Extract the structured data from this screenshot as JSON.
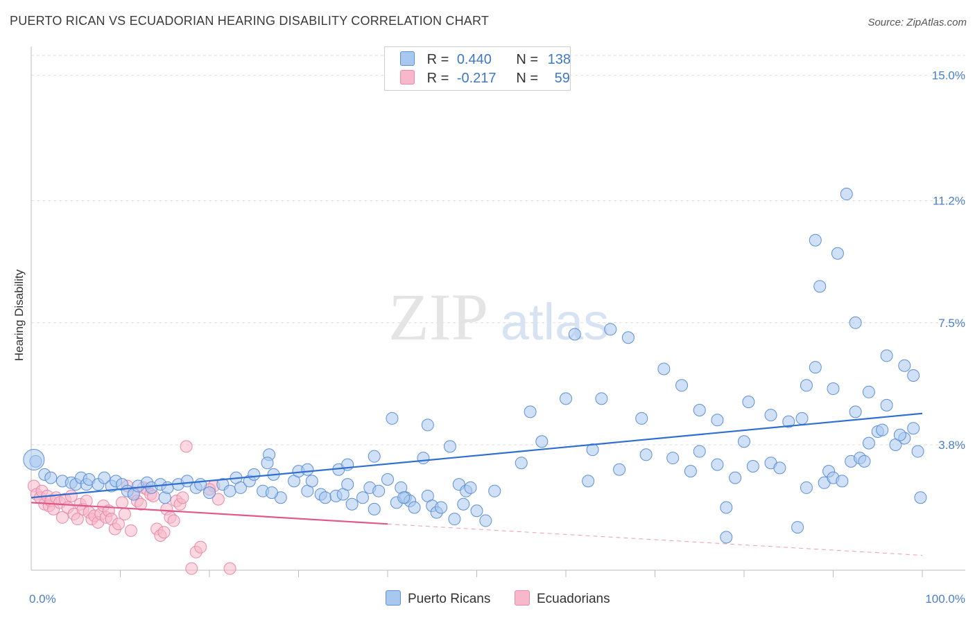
{
  "header": {
    "title": "PUERTO RICAN VS ECUADORIAN HEARING DISABILITY CORRELATION CHART",
    "source": "Source: ZipAtlas.com"
  },
  "watermark": {
    "zip": "ZIP",
    "atlas": "atlas"
  },
  "colors": {
    "blue_fill": "#a9c8f0",
    "blue_stroke": "#5b8fd6",
    "blue_line": "#2f6fd0",
    "pink_fill": "#f7b8cb",
    "pink_stroke": "#e989a6",
    "pink_line": "#e0588a",
    "tick_text": "#4a7fc8"
  },
  "legend": {
    "rows": [
      {
        "r_label": "R =",
        "r_value": "0.440",
        "n_label": "N =",
        "n_value": "138"
      },
      {
        "r_label": "R =",
        "r_value": "-0.217",
        "n_label": "N =",
        "n_value": "59"
      }
    ]
  },
  "bottom_legend": {
    "series1": "Puerto Ricans",
    "series2": "Ecuadorians"
  },
  "chart_data": {
    "type": "scatter",
    "title": "PUERTO RICAN VS ECUADORIAN HEARING DISABILITY CORRELATION CHART",
    "xlabel": "",
    "ylabel": "Hearing Disability",
    "xlim": [
      0,
      100
    ],
    "ylim": [
      0,
      15.6
    ],
    "x_tick_labels": [
      "0.0%",
      "100.0%"
    ],
    "y_ticks": [
      3.8,
      7.5,
      11.2,
      15.0
    ],
    "y_tick_labels": [
      "3.8%",
      "7.5%",
      "11.2%",
      "15.0%"
    ],
    "grid": "horizontal dashed",
    "series": [
      {
        "name": "Puerto Ricans",
        "color": "#5b8fd6",
        "R": 0.44,
        "N": 138,
        "trend": {
          "x": [
            0,
            100
          ],
          "y": [
            2.2,
            4.75
          ]
        },
        "points": [
          [
            0.5,
            3.3
          ],
          [
            1.5,
            2.9
          ],
          [
            2.2,
            2.8
          ],
          [
            3.5,
            2.7
          ],
          [
            4.5,
            2.65
          ],
          [
            5,
            2.6
          ],
          [
            5.6,
            2.8
          ],
          [
            6.2,
            2.6
          ],
          [
            6.5,
            2.75
          ],
          [
            7.5,
            2.6
          ],
          [
            8.2,
            2.8
          ],
          [
            9,
            2.55
          ],
          [
            9.5,
            2.7
          ],
          [
            10.2,
            2.6
          ],
          [
            10.8,
            2.4
          ],
          [
            11.5,
            2.3
          ],
          [
            12,
            2.55
          ],
          [
            13,
            2.65
          ],
          [
            13.5,
            2.5
          ],
          [
            14.5,
            2.6
          ],
          [
            15,
            2.2
          ],
          [
            15.3,
            2.5
          ],
          [
            16.5,
            2.6
          ],
          [
            17.5,
            2.7
          ],
          [
            18.5,
            2.5
          ],
          [
            19,
            2.6
          ],
          [
            20,
            2.35
          ],
          [
            21.5,
            2.6
          ],
          [
            22.3,
            2.4
          ],
          [
            23,
            2.8
          ],
          [
            23.5,
            2.5
          ],
          [
            24.5,
            2.7
          ],
          [
            25,
            2.9
          ],
          [
            26,
            2.4
          ],
          [
            26.7,
            3.5
          ],
          [
            27.2,
            2.9
          ],
          [
            28,
            2.2
          ],
          [
            29.5,
            2.7
          ],
          [
            30,
            3.0
          ],
          [
            31,
            2.4
          ],
          [
            31.5,
            2.7
          ],
          [
            32.5,
            2.3
          ],
          [
            33,
            2.2
          ],
          [
            34.2,
            2.25
          ],
          [
            35,
            2.3
          ],
          [
            35.5,
            2.6
          ],
          [
            36,
            2.0
          ],
          [
            37.2,
            2.2
          ],
          [
            38,
            2.5
          ],
          [
            38.5,
            1.85
          ],
          [
            39,
            2.4
          ],
          [
            40,
            2.75
          ],
          [
            41,
            2.05
          ],
          [
            41.5,
            2.5
          ],
          [
            42,
            2.2
          ],
          [
            42.5,
            2.1
          ],
          [
            43,
            1.9
          ],
          [
            44.5,
            2.25
          ],
          [
            45,
            1.95
          ],
          [
            45.5,
            1.75
          ],
          [
            46,
            1.9
          ],
          [
            47.5,
            1.55
          ],
          [
            40.5,
            4.6
          ],
          [
            41.8,
            2.2
          ],
          [
            27,
            2.35
          ],
          [
            26.5,
            3.25
          ],
          [
            31,
            3.05
          ],
          [
            34.5,
            3.05
          ],
          [
            35.5,
            3.2
          ],
          [
            38.5,
            3.45
          ],
          [
            44,
            3.4
          ],
          [
            44.5,
            4.4
          ],
          [
            48,
            2.6
          ],
          [
            48.5,
            2.0
          ],
          [
            48.8,
            2.4
          ],
          [
            50,
            1.8
          ],
          [
            51,
            1.5
          ],
          [
            49.3,
            2.5
          ],
          [
            47,
            3.75
          ],
          [
            57.3,
            3.9
          ],
          [
            55,
            3.25
          ],
          [
            56,
            4.8
          ],
          [
            52,
            2.4
          ],
          [
            60,
            5.2
          ],
          [
            61,
            7.15
          ],
          [
            62.5,
            2.7
          ],
          [
            63,
            3.65
          ],
          [
            66,
            3.05
          ],
          [
            69,
            3.5
          ],
          [
            75,
            3.6
          ],
          [
            77,
            3.2
          ],
          [
            78,
            1.9
          ],
          [
            79,
            2.8
          ],
          [
            80,
            3.9
          ],
          [
            81,
            3.15
          ],
          [
            83,
            3.25
          ],
          [
            84,
            3.1
          ],
          [
            86,
            1.3
          ],
          [
            87,
            2.5
          ],
          [
            89,
            2.65
          ],
          [
            89.5,
            3.0
          ],
          [
            90,
            2.8
          ],
          [
            91,
            2.7
          ],
          [
            92,
            3.3
          ],
          [
            93,
            3.4
          ],
          [
            94,
            3.85
          ],
          [
            95,
            4.2
          ],
          [
            96,
            5.0
          ],
          [
            97,
            3.8
          ],
          [
            98,
            4.0
          ],
          [
            99,
            4.3
          ],
          [
            99.5,
            3.6
          ],
          [
            99.8,
            2.2
          ],
          [
            65,
            7.3
          ],
          [
            67,
            7.05
          ],
          [
            71,
            6.1
          ],
          [
            73,
            5.6
          ],
          [
            75,
            4.85
          ],
          [
            77,
            4.55
          ],
          [
            64,
            5.2
          ],
          [
            68.5,
            4.6
          ],
          [
            72,
            3.4
          ],
          [
            74,
            3.0
          ],
          [
            78,
            1.0
          ],
          [
            80.5,
            5.1
          ],
          [
            83,
            4.7
          ],
          [
            85,
            4.5
          ],
          [
            87,
            5.6
          ],
          [
            90,
            5.5
          ],
          [
            92.5,
            4.8
          ],
          [
            94,
            5.4
          ],
          [
            96,
            6.5
          ],
          [
            98,
            6.2
          ],
          [
            99,
            5.9
          ],
          [
            95.5,
            4.25
          ],
          [
            97.5,
            4.1
          ],
          [
            88,
            10.0
          ],
          [
            88.5,
            8.6
          ],
          [
            90.5,
            9.6
          ],
          [
            91.5,
            11.4
          ],
          [
            92.5,
            7.5
          ],
          [
            86.5,
            4.6
          ],
          [
            88,
            6.15
          ],
          [
            93.5,
            3.3
          ]
        ]
      },
      {
        "name": "Ecuadorians",
        "color": "#e989a6",
        "R": -0.217,
        "N": 59,
        "trend": {
          "x": [
            0,
            40
          ],
          "y": [
            2.05,
            1.4
          ],
          "x_dashed": [
            40,
            100
          ],
          "y_dashed": [
            1.4,
            0.45
          ]
        },
        "points": [
          [
            0.3,
            2.55
          ],
          [
            0.6,
            2.3
          ],
          [
            1,
            2.2
          ],
          [
            1.2,
            2.4
          ],
          [
            1.5,
            2.0
          ],
          [
            1.8,
            2.25
          ],
          [
            2,
            1.95
          ],
          [
            2.2,
            2.1
          ],
          [
            2.5,
            1.85
          ],
          [
            2.8,
            2.2
          ],
          [
            3.2,
            2.05
          ],
          [
            3.5,
            1.6
          ],
          [
            3.8,
            2.15
          ],
          [
            4.1,
            1.9
          ],
          [
            4.5,
            2.25
          ],
          [
            4.8,
            1.7
          ],
          [
            5.2,
            1.55
          ],
          [
            5.5,
            2.0
          ],
          [
            5.8,
            1.85
          ],
          [
            6.2,
            2.1
          ],
          [
            6.5,
            1.75
          ],
          [
            6.8,
            1.55
          ],
          [
            7.1,
            1.65
          ],
          [
            7.5,
            1.45
          ],
          [
            7.8,
            1.7
          ],
          [
            8.1,
            1.95
          ],
          [
            8.4,
            1.6
          ],
          [
            8.7,
            1.8
          ],
          [
            9,
            1.55
          ],
          [
            9.4,
            1.25
          ],
          [
            9.8,
            1.4
          ],
          [
            10.2,
            2.05
          ],
          [
            10.5,
            1.7
          ],
          [
            10.8,
            2.55
          ],
          [
            11.2,
            1.2
          ],
          [
            11.5,
            2.35
          ],
          [
            11.9,
            2.1
          ],
          [
            12.3,
            2.0
          ],
          [
            12.6,
            2.5
          ],
          [
            13,
            2.45
          ],
          [
            13.4,
            2.3
          ],
          [
            13.7,
            2.25
          ],
          [
            14.1,
            1.25
          ],
          [
            14.5,
            1.05
          ],
          [
            14.9,
            1.15
          ],
          [
            15.2,
            1.85
          ],
          [
            15.6,
            1.6
          ],
          [
            16,
            1.5
          ],
          [
            16.3,
            2.1
          ],
          [
            16.7,
            2.0
          ],
          [
            17,
            2.2
          ],
          [
            17.4,
            3.75
          ],
          [
            18,
            0.05
          ],
          [
            18.5,
            0.55
          ],
          [
            19,
            0.7
          ],
          [
            20.5,
            2.55
          ],
          [
            20,
            2.45
          ],
          [
            21,
            2.15
          ],
          [
            22.3,
            0.05
          ]
        ]
      }
    ]
  }
}
